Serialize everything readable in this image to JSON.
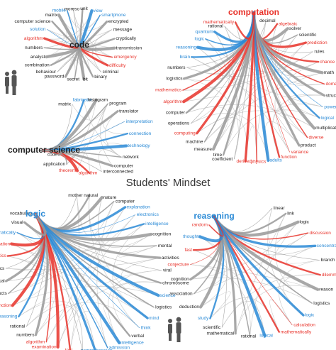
{
  "title": "Students' Mindset",
  "diagrams": [
    {
      "hub": {
        "label": "code",
        "color": "#222222"
      },
      "words": [
        {
          "label": "moreso",
          "color": "#222222"
        },
        {
          "label": "unit",
          "color": "#222222"
        },
        {
          "label": "view",
          "color": "#2a8ad6"
        },
        {
          "label": "smartphone",
          "color": "#2a8ad6"
        },
        {
          "label": "encrypted",
          "color": "#222222"
        },
        {
          "label": "message",
          "color": "#222222"
        },
        {
          "label": "cryptically",
          "color": "#222222"
        },
        {
          "label": "transmission",
          "color": "#222222"
        },
        {
          "label": "emergency",
          "color": "#e8322a"
        },
        {
          "label": "difficulty",
          "color": "#e8322a"
        },
        {
          "label": "criminal",
          "color": "#222222"
        },
        {
          "label": "binary",
          "color": "#222222"
        },
        {
          "label": "bit",
          "color": "#222222"
        },
        {
          "label": "secret",
          "color": "#222222"
        },
        {
          "label": "password",
          "color": "#222222"
        },
        {
          "label": "behaviour",
          "color": "#222222"
        },
        {
          "label": "combination",
          "color": "#222222"
        },
        {
          "label": "analyst",
          "color": "#222222"
        },
        {
          "label": "numbers",
          "color": "#222222"
        },
        {
          "label": "algorithm",
          "color": "#e8322a"
        },
        {
          "label": "solution",
          "color": "#2a8ad6"
        },
        {
          "label": "computer science",
          "color": "#222222"
        },
        {
          "label": "matrix",
          "color": "#222222"
        },
        {
          "label": "mobile",
          "color": "#2a8ad6"
        }
      ]
    },
    {
      "hub": {
        "label": "computer science",
        "color": "#222222"
      },
      "words": [
        {
          "label": "matrix",
          "color": "#222222"
        },
        {
          "label": "fabricator",
          "color": "#2a8ad6"
        },
        {
          "label": "histogram",
          "color": "#222222"
        },
        {
          "label": "program",
          "color": "#222222"
        },
        {
          "label": "translator",
          "color": "#222222"
        },
        {
          "label": "interpretation",
          "color": "#2a8ad6"
        },
        {
          "label": "connection",
          "color": "#2a8ad6"
        },
        {
          "label": "technology",
          "color": "#2a8ad6"
        },
        {
          "label": "network",
          "color": "#222222"
        },
        {
          "label": "computer",
          "color": "#222222"
        },
        {
          "label": "interconnected",
          "color": "#222222"
        },
        {
          "label": "algorithm",
          "color": "#e8322a"
        },
        {
          "label": "theorem",
          "color": "#e8322a"
        },
        {
          "label": "application",
          "color": "#222222"
        },
        {
          "label": "code",
          "color": "#222222"
        }
      ]
    },
    {
      "hub": {
        "label": "computation",
        "color": "#e8322a"
      },
      "words": [
        {
          "label": "decimal",
          "color": "#222222"
        },
        {
          "label": "algebraic",
          "color": "#e8322a"
        },
        {
          "label": "solver",
          "color": "#222222"
        },
        {
          "label": "scientific",
          "color": "#222222"
        },
        {
          "label": "prediction",
          "color": "#e8322a"
        },
        {
          "label": "rules",
          "color": "#222222"
        },
        {
          "label": "chance",
          "color": "#e8322a"
        },
        {
          "label": "math",
          "color": "#222222"
        },
        {
          "label": "domain",
          "color": "#e8322a"
        },
        {
          "label": "structure",
          "color": "#222222"
        },
        {
          "label": "power",
          "color": "#2a8ad6"
        },
        {
          "label": "logical",
          "color": "#2a8ad6"
        },
        {
          "label": "multiplication",
          "color": "#222222"
        },
        {
          "label": "diverse",
          "color": "#e8322a"
        },
        {
          "label": "product",
          "color": "#222222"
        },
        {
          "label": "variance",
          "color": "#e8322a"
        },
        {
          "label": "function",
          "color": "#e8322a"
        },
        {
          "label": "adults",
          "color": "#2a8ad6"
        },
        {
          "label": "physics",
          "color": "#e8322a"
        },
        {
          "label": "derived",
          "color": "#e8322a"
        },
        {
          "label": "coefficient",
          "color": "#222222"
        },
        {
          "label": "time",
          "color": "#222222"
        },
        {
          "label": "measure",
          "color": "#222222"
        },
        {
          "label": "machine",
          "color": "#222222"
        },
        {
          "label": "computing",
          "color": "#e8322a"
        },
        {
          "label": "operations",
          "color": "#222222"
        },
        {
          "label": "computer",
          "color": "#222222"
        },
        {
          "label": "algorithm",
          "color": "#e8322a"
        },
        {
          "label": "mathematics",
          "color": "#e8322a"
        },
        {
          "label": "logistics",
          "color": "#222222"
        },
        {
          "label": "numbers",
          "color": "#222222"
        },
        {
          "label": "brain",
          "color": "#2a8ad6"
        },
        {
          "label": "reasoning",
          "color": "#2a8ad6"
        },
        {
          "label": "logic",
          "color": "#2a8ad6"
        },
        {
          "label": "quantum",
          "color": "#2a8ad6"
        },
        {
          "label": "rational",
          "color": "#222222"
        },
        {
          "label": "mathematically",
          "color": "#e8322a"
        }
      ]
    },
    {
      "hub": {
        "label": "logic",
        "color": "#2a8ad6"
      },
      "words": [
        {
          "label": "mother",
          "color": "#222222"
        },
        {
          "label": "natural",
          "color": "#222222"
        },
        {
          "label": "nature",
          "color": "#222222"
        },
        {
          "label": "computer",
          "color": "#222222"
        },
        {
          "label": "explanation",
          "color": "#2a8ad6"
        },
        {
          "label": "electronics",
          "color": "#2a8ad6"
        },
        {
          "label": "intelligence",
          "color": "#2a8ad6"
        },
        {
          "label": "cognition",
          "color": "#222222"
        },
        {
          "label": "mental",
          "color": "#222222"
        },
        {
          "label": "activities",
          "color": "#222222"
        },
        {
          "label": "viral",
          "color": "#222222"
        },
        {
          "label": "chromosome",
          "color": "#222222"
        },
        {
          "label": "science",
          "color": "#2a8ad6"
        },
        {
          "label": "logistics",
          "color": "#222222"
        },
        {
          "label": "mind",
          "color": "#2a8ad6"
        },
        {
          "label": "think",
          "color": "#2a8ad6"
        },
        {
          "label": "verbal",
          "color": "#222222"
        },
        {
          "label": "intelligence",
          "color": "#2a8ad6"
        },
        {
          "label": "admission",
          "color": "#2a8ad6"
        },
        {
          "label": "comprehension",
          "color": "#2a8ad6"
        },
        {
          "label": "writer",
          "color": "#222222"
        },
        {
          "label": "test",
          "color": "#e8322a"
        },
        {
          "label": "examination",
          "color": "#e8322a"
        },
        {
          "label": "algorithm",
          "color": "#e8322a"
        },
        {
          "label": "numbers",
          "color": "#222222"
        },
        {
          "label": "rational",
          "color": "#222222"
        },
        {
          "label": "reasoning",
          "color": "#2a8ad6"
        },
        {
          "label": "function",
          "color": "#e8322a"
        },
        {
          "label": "products",
          "color": "#222222"
        },
        {
          "label": "mathematical",
          "color": "#222222"
        },
        {
          "label": "physics",
          "color": "#222222"
        },
        {
          "label": "mathematics",
          "color": "#e8322a"
        },
        {
          "label": "calculation",
          "color": "#e8322a"
        },
        {
          "label": "mathematically",
          "color": "#2a8ad6"
        },
        {
          "label": "visual",
          "color": "#222222"
        },
        {
          "label": "vocabulary",
          "color": "#222222"
        }
      ]
    },
    {
      "hub": {
        "label": "reasoning",
        "color": "#2a8ad6"
      },
      "words": [
        {
          "label": "linear",
          "color": "#222222"
        },
        {
          "label": "link",
          "color": "#222222"
        },
        {
          "label": "logic",
          "color": "#222222"
        },
        {
          "label": "discussion",
          "color": "#e8322a"
        },
        {
          "label": "concentration",
          "color": "#2a8ad6"
        },
        {
          "label": "branch",
          "color": "#222222"
        },
        {
          "label": "dilemma",
          "color": "#e8322a"
        },
        {
          "label": "reason",
          "color": "#222222"
        },
        {
          "label": "logistics",
          "color": "#222222"
        },
        {
          "label": "logic",
          "color": "#2a8ad6"
        },
        {
          "label": "calculation",
          "color": "#e8322a"
        },
        {
          "label": "mathematically",
          "color": "#e8322a"
        },
        {
          "label": "logical",
          "color": "#2a8ad6"
        },
        {
          "label": "rational",
          "color": "#222222"
        },
        {
          "label": "mathematical",
          "color": "#222222"
        },
        {
          "label": "scientific",
          "color": "#222222"
        },
        {
          "label": "study",
          "color": "#2a8ad6"
        },
        {
          "label": "deduction",
          "color": "#222222"
        },
        {
          "label": "association",
          "color": "#222222"
        },
        {
          "label": "cognition",
          "color": "#222222"
        },
        {
          "label": "conjecture",
          "color": "#e8322a"
        },
        {
          "label": "fast",
          "color": "#e8322a"
        },
        {
          "label": "thought",
          "color": "#2a8ad6"
        },
        {
          "label": "random",
          "color": "#e8322a"
        }
      ]
    }
  ]
}
